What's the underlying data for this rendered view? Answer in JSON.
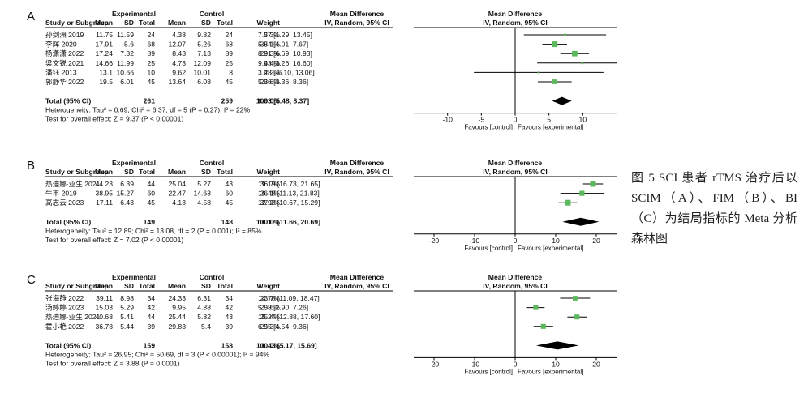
{
  "caption": "图 5 SCI 患者 rTMS 治疗后以 SCIM（A）、FIM（B）、BI（C）为结局指标的 Meta 分析森林图",
  "header": {
    "experimental": "Experimental",
    "control": "Control",
    "md_group": "Mean Difference",
    "plot_group": "Mean Difference",
    "study": "Study or Subgroup",
    "mean": "Mean",
    "sd": "SD",
    "total": "Total",
    "weight": "Weight",
    "md_method": "IV, Random, 95% CI",
    "plot_method": "IV, Random, 95% CI"
  },
  "colors": {
    "study_marker": "#5cb85c",
    "summary_diamond": "#000000",
    "line": "#000000"
  },
  "chart_data": [
    {
      "type": "forest",
      "panel_label": "A",
      "xlim": [
        -15,
        15
      ],
      "ticks": [
        "-10",
        "-5",
        "0",
        "5",
        "10"
      ],
      "favours_left": "Favours [control]",
      "favours_right": "Favours [experimental]",
      "studies": [
        {
          "study": "孙剑洲 2019",
          "e_mean": "11.75",
          "e_sd": "11.59",
          "e_total": "24",
          "c_mean": "4.38",
          "c_sd": "9.82",
          "c_total": "24",
          "weight": "5.3%",
          "ci_text": "7.37 [1.29, 13.45]",
          "md": 7.37,
          "low": 1.29,
          "high": 13.45
        },
        {
          "study": "李辉 2020",
          "e_mean": "17.91",
          "e_sd": "5.6",
          "e_total": "68",
          "c_mean": "12.07",
          "c_sd": "5.26",
          "c_total": "68",
          "weight": "35.1%",
          "ci_text": "5.84 [4.01, 7.67]",
          "md": 5.84,
          "low": 4.01,
          "high": 7.67
        },
        {
          "study": "杨潇潇 2022",
          "e_mean": "17.24",
          "e_sd": "7.32",
          "e_total": "89",
          "c_mean": "8.43",
          "c_sd": "7.13",
          "c_total": "89",
          "weight": "29.3%",
          "ci_text": "8.81 [6.69, 10.93]",
          "md": 8.81,
          "low": 6.69,
          "high": 10.93
        },
        {
          "study": "梁文锐 2021",
          "e_mean": "14.66",
          "e_sd": "11.99",
          "e_total": "25",
          "c_mean": "4.73",
          "c_sd": "12.09",
          "c_total": "25",
          "weight": "4.4%",
          "ci_text": "9.93 [3.26, 16.60]",
          "md": 9.93,
          "low": 3.26,
          "high": 16.6
        },
        {
          "study": "潘钰 2013",
          "e_mean": "13.1",
          "e_sd": "10.66",
          "e_total": "10",
          "c_mean": "9.62",
          "c_sd": "10.01",
          "c_total": "8",
          "weight": "2.2%",
          "ci_text": "3.48 [-6.10, 13.06]",
          "md": 3.48,
          "low": -6.1,
          "high": 13.06
        },
        {
          "study": "郭静华 2022",
          "e_mean": "19.5",
          "e_sd": "6.01",
          "e_total": "45",
          "c_mean": "13.64",
          "c_sd": "6.08",
          "c_total": "45",
          "weight": "23.6%",
          "ci_text": "5.86 [3.36, 8.36]",
          "md": 5.86,
          "low": 3.36,
          "high": 8.36
        }
      ],
      "total": {
        "label": "Total (95% CI)",
        "e_total": "261",
        "c_total": "259",
        "weight": "100.0%",
        "ci_text": "6.93 [5.48, 8.37]",
        "md": 6.93,
        "low": 5.48,
        "high": 8.37
      },
      "heterogeneity": "Heterogeneity: Tau² = 0.69; Chi² = 6.37, df = 5 (P = 0.27); I² = 22%",
      "overall_effect": "Test for overall effect: Z = 9.37 (P < 0.00001)"
    },
    {
      "type": "forest",
      "panel_label": "B",
      "xlim": [
        -25,
        25
      ],
      "ticks": [
        "-20",
        "-10",
        "0",
        "10",
        "20"
      ],
      "favours_left": "Favours [control]",
      "favours_right": "Favours [experimental]",
      "studies": [
        {
          "study": "热迪娜·亚生 2021",
          "e_mean": "44.23",
          "e_sd": "6.39",
          "e_total": "44",
          "c_mean": "25.04",
          "c_sd": "5.27",
          "c_total": "43",
          "weight": "36.7%",
          "ci_text": "19.19 [16.73, 21.65]",
          "md": 19.19,
          "low": 16.73,
          "high": 21.65
        },
        {
          "study": "牛丰 2019",
          "e_mean": "38.95",
          "e_sd": "15.27",
          "e_total": "60",
          "c_mean": "22.47",
          "c_sd": "14.63",
          "c_total": "60",
          "weight": "26.1%",
          "ci_text": "16.48 [11.13, 21.83]",
          "md": 16.48,
          "low": 11.13,
          "high": 21.83
        },
        {
          "study": "高志云 2023",
          "e_mean": "17.11",
          "e_sd": "6.43",
          "e_total": "45",
          "c_mean": "4.13",
          "c_sd": "4.58",
          "c_total": "45",
          "weight": "37.2%",
          "ci_text": "12.98 [10.67, 15.29]",
          "md": 12.98,
          "low": 10.67,
          "high": 15.29
        }
      ],
      "total": {
        "label": "Total (95% CI)",
        "e_total": "149",
        "c_total": "148",
        "weight": "100.0%",
        "ci_text": "16.17 [11.66, 20.69]",
        "md": 16.17,
        "low": 11.66,
        "high": 20.69
      },
      "heterogeneity": "Heterogeneity: Tau² = 12.89; Chi² = 13.08, df = 2 (P = 0.001); I² = 85%",
      "overall_effect": "Test for overall effect: Z = 7.02 (P < 0.00001)"
    },
    {
      "type": "forest",
      "panel_label": "C",
      "xlim": [
        -25,
        25
      ],
      "ticks": [
        "-20",
        "-10",
        "0",
        "10",
        "20"
      ],
      "favours_left": "Favours [control]",
      "favours_right": "Favours [experimental]",
      "studies": [
        {
          "study": "张海静 2022",
          "e_mean": "39.11",
          "e_sd": "8.98",
          "e_total": "34",
          "c_mean": "24.33",
          "c_sd": "6.31",
          "c_total": "34",
          "weight": "23.7%",
          "ci_text": "14.78 [11.09, 18.47]",
          "md": 14.78,
          "low": 11.09,
          "high": 18.47
        },
        {
          "study": "汤婷婷 2023",
          "e_mean": "15.03",
          "e_sd": "5.29",
          "e_total": "42",
          "c_mean": "9.95",
          "c_sd": "4.88",
          "c_total": "42",
          "weight": "25.6%",
          "ci_text": "5.08 [2.90, 7.26]",
          "md": 5.08,
          "low": 2.9,
          "high": 7.26
        },
        {
          "study": "热迪娜·亚生 2021",
          "e_mean": "40.68",
          "e_sd": "5.41",
          "e_total": "44",
          "c_mean": "25.44",
          "c_sd": "5.82",
          "c_total": "43",
          "weight": "25.4%",
          "ci_text": "15.24 [12.88, 17.60]",
          "md": 15.24,
          "low": 12.88,
          "high": 17.6
        },
        {
          "study": "霍小艳 2022",
          "e_mean": "36.78",
          "e_sd": "5.44",
          "e_total": "39",
          "c_mean": "29.83",
          "c_sd": "5.4",
          "c_total": "39",
          "weight": "25.3%",
          "ci_text": "6.95 [4.54, 9.36]",
          "md": 6.95,
          "low": 4.54,
          "high": 9.36
        }
      ],
      "total": {
        "label": "Total (95% CI)",
        "e_total": "159",
        "c_total": "158",
        "weight": "100.0%",
        "ci_text": "10.43 [5.17, 15.69]",
        "md": 10.43,
        "low": 5.17,
        "high": 15.69
      },
      "heterogeneity": "Heterogeneity: Tau² = 26.95; Chi² = 50.69, df = 3 (P < 0.00001); I² = 94%",
      "overall_effect": "Test for overall effect: Z = 3.88 (P = 0.0001)"
    }
  ]
}
